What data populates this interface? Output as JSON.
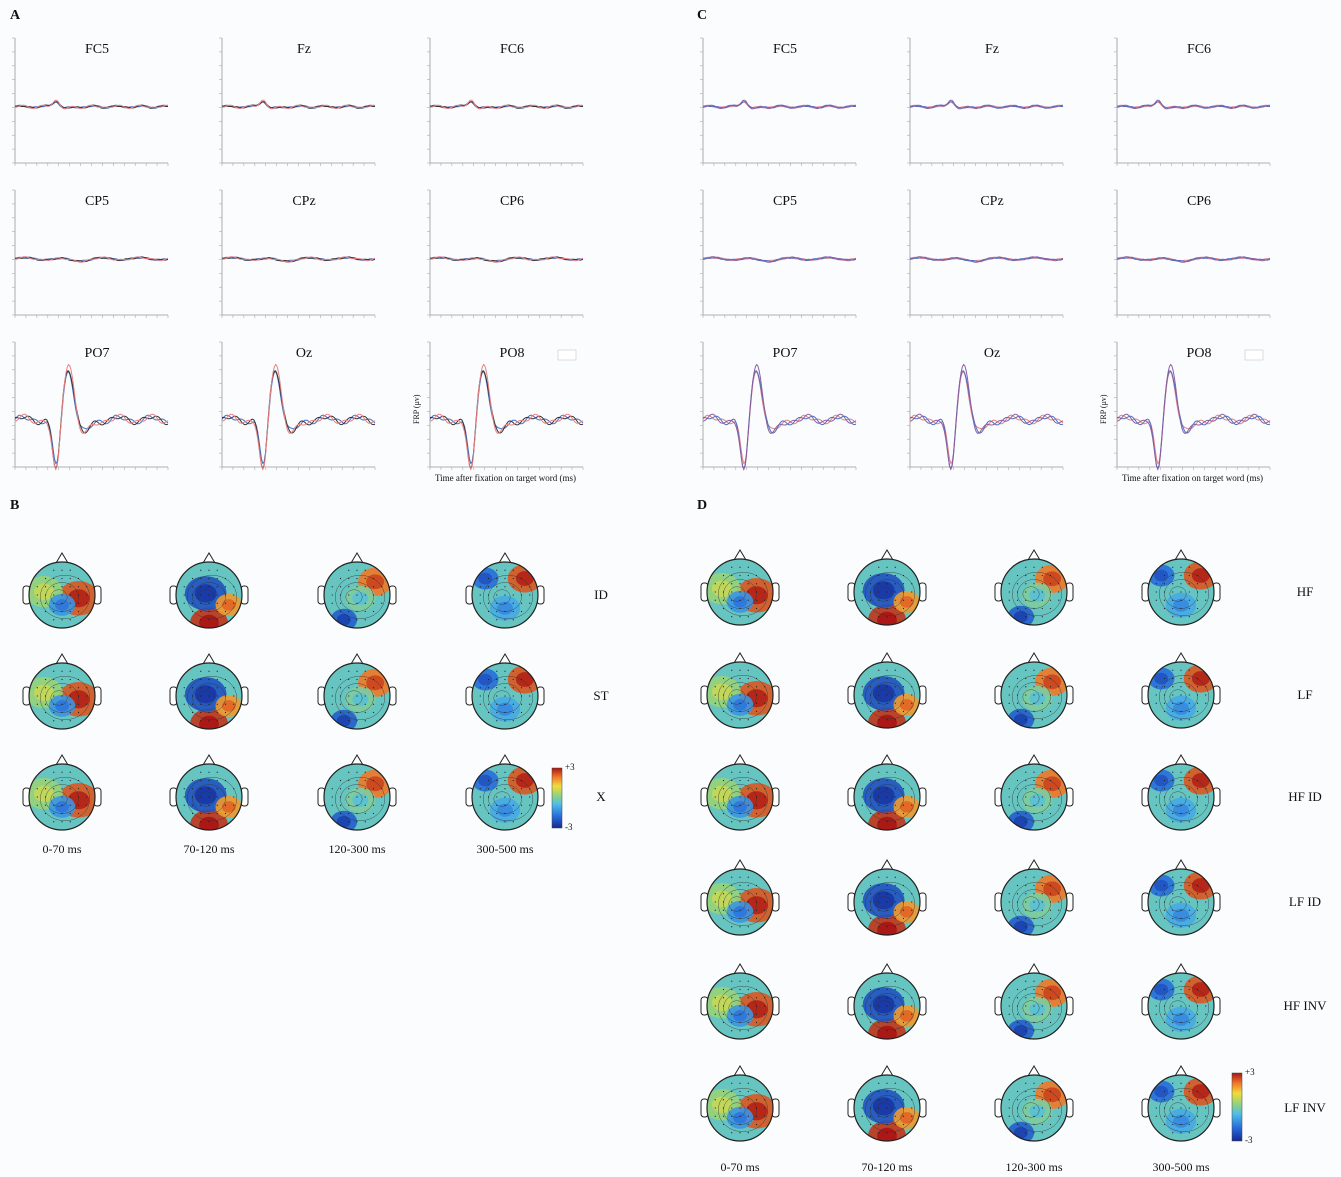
{
  "panels": {
    "A": "A",
    "B": "B",
    "C": "C",
    "D": "D"
  },
  "electrodes": [
    "FC5",
    "Fz",
    "FC6",
    "CP5",
    "CPz",
    "CP6",
    "PO7",
    "Oz",
    "PO8"
  ],
  "erp_axis": {
    "ylabel": "FRP (μv)",
    "xlabel": "Time after fixation on target word (ms)"
  },
  "panel_B": {
    "conditions": [
      "ID",
      "ST",
      "X"
    ],
    "time_windows": [
      "0-70 ms",
      "70-120 ms",
      "120-300 ms",
      "300-500 ms"
    ],
    "colorbar": {
      "max": "+3",
      "min": "-3"
    }
  },
  "panel_D": {
    "conditions": [
      "HF",
      "LF",
      "HF ID",
      "LF ID",
      "HF INV",
      "LF INV"
    ],
    "time_windows": [
      "0-70 ms",
      "70-120 ms",
      "120-300 ms",
      "300-500 ms"
    ],
    "colorbar": {
      "max": "+3",
      "min": "-3"
    }
  },
  "colors": {
    "series_blue": "#4a6fc4",
    "series_black": "#333333",
    "series_red": "#e88080",
    "series_purple": "#8a5fa0"
  }
}
